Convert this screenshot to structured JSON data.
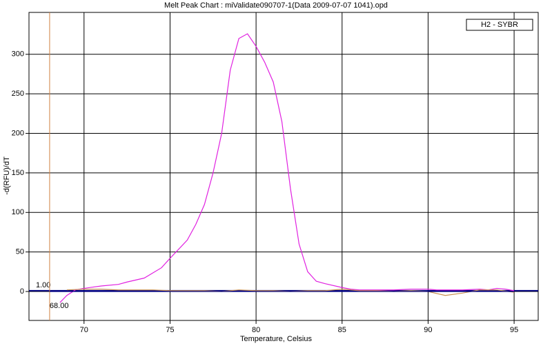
{
  "chart_data": {
    "type": "line",
    "title": "Melt Peak Chart : miValidate090707-1(Data 2009-07-07 1041).opd",
    "xlabel": "Temperature, Celsius",
    "ylabel": "-d(RFU)/dT",
    "legend_label": "H2 - SYBR",
    "legend_position": "upper right",
    "xlim": [
      66.8,
      96.4
    ],
    "ylim": [
      -36.6,
      353
    ],
    "xticks": [
      70,
      75,
      80,
      85,
      90,
      95
    ],
    "yticks": [
      0,
      50,
      100,
      150,
      200,
      250,
      300
    ],
    "grid": true,
    "threshold": {
      "value": 1,
      "label": "1.00",
      "color": "#000080"
    },
    "marker_x": {
      "value": 68,
      "label": "68.00",
      "color": "#d08040"
    },
    "series": [
      {
        "color": "#e020e0",
        "x": [
          68.6,
          69,
          69.5,
          70,
          71,
          72,
          72.5,
          73.5,
          74.5,
          75,
          76,
          76.5,
          77,
          77.5,
          78,
          78.5,
          79,
          79.5,
          80,
          80.5,
          81,
          81.5,
          82,
          82.5,
          83,
          83.5,
          84,
          85,
          85.5,
          86,
          88,
          89,
          90,
          90.5,
          91,
          92,
          93,
          93.5,
          94,
          94.5,
          95
        ],
        "values": [
          -14,
          -5,
          2,
          4,
          7,
          9,
          12,
          17,
          30,
          42,
          65,
          85,
          110,
          150,
          200,
          280,
          320,
          326,
          310,
          290,
          265,
          215,
          130,
          60,
          25,
          13,
          10,
          5,
          3,
          2,
          2,
          3,
          3,
          2,
          2,
          2,
          3,
          2,
          4,
          3,
          1
        ]
      },
      {
        "color": "#c89050",
        "x": [
          69,
          70,
          71,
          72,
          73,
          74,
          75,
          76,
          77,
          78,
          79,
          80,
          81,
          82,
          83,
          84,
          85,
          86,
          87,
          88,
          89,
          90,
          91,
          92,
          93,
          94,
          95
        ],
        "values": [
          2,
          3,
          3,
          2,
          2,
          2,
          1,
          1,
          1,
          0,
          2,
          1,
          1,
          0,
          1,
          1,
          3,
          1,
          1,
          0,
          1,
          0,
          -5,
          -2,
          2,
          2,
          -1
        ]
      },
      {
        "color": "#000080",
        "x": [
          68,
          95
        ],
        "values": [
          0,
          0
        ]
      }
    ]
  }
}
